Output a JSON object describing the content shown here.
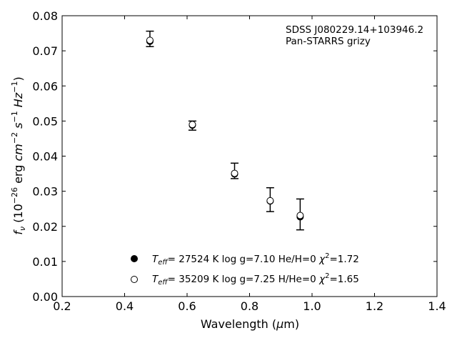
{
  "chart_data": {
    "type": "scatter",
    "xlabel": {
      "prefix": "Wavelength (",
      "mu": "μ",
      "suffix": "m)"
    },
    "ylabel": {
      "f": "f",
      "nu": "ν",
      "open": " (10",
      "exp1": "−26",
      "erg": " erg ",
      "cm": "cm",
      "exp2": "−2",
      "s": " s",
      "exp3": "−1",
      "hz": " Hz",
      "exp4": "−1",
      "close": ")"
    },
    "xlim": [
      0.2,
      1.4
    ],
    "ylim": [
      0.0,
      0.08
    ],
    "x_ticks": [
      "0.2",
      "0.4",
      "0.6",
      "0.8",
      "1.0",
      "1.2",
      "1.4"
    ],
    "y_ticks": [
      "0.00",
      "0.01",
      "0.02",
      "0.03",
      "0.04",
      "0.05",
      "0.06",
      "0.07",
      "0.08"
    ],
    "x_tick_values": [
      0.2,
      0.4,
      0.6,
      0.8,
      1.0,
      1.2,
      1.4
    ],
    "y_tick_values": [
      0.0,
      0.01,
      0.02,
      0.03,
      0.04,
      0.05,
      0.06,
      0.07,
      0.08
    ],
    "annotation": [
      "SDSS J080229.14+103946.2",
      "Pan-STARRS grizy"
    ],
    "observed": {
      "x": [
        0.481,
        0.617,
        0.752,
        0.866,
        0.962
      ],
      "y": [
        0.0734,
        0.0487,
        0.0358,
        0.0276,
        0.0234
      ],
      "yerr": [
        0.0022,
        0.0013,
        0.0022,
        0.0034,
        0.0044
      ]
    },
    "series": [
      {
        "name": "Teff= 27524 K  log g=7.10  He/H=0  χ2=1.72",
        "label_parts": {
          "t": "T",
          "sub": "eff",
          "rest": "= 27524 K  log g=7.10  He/H=0  ",
          "chi": "χ",
          "sup": "2",
          "end": "=1.72"
        },
        "marker": "filled",
        "x": [
          0.481,
          0.617,
          0.752,
          0.866,
          0.962
        ],
        "y": [
          0.0727,
          0.0488,
          0.0349,
          0.0272,
          0.0227
        ]
      },
      {
        "name": "Teff= 35209 K  log g=7.25  H/He=0  χ2=1.65",
        "label_parts": {
          "t": "T",
          "sub": "eff",
          "rest": "= 35209 K  log g=7.25  H/He=0  ",
          "chi": "χ",
          "sup": "2",
          "end": "=1.65"
        },
        "marker": "open",
        "x": [
          0.481,
          0.617,
          0.752,
          0.866,
          0.962
        ],
        "y": [
          0.073,
          0.049,
          0.0351,
          0.0273,
          0.0231
        ]
      }
    ],
    "legend_position": "bottom-center",
    "grid": false
  }
}
